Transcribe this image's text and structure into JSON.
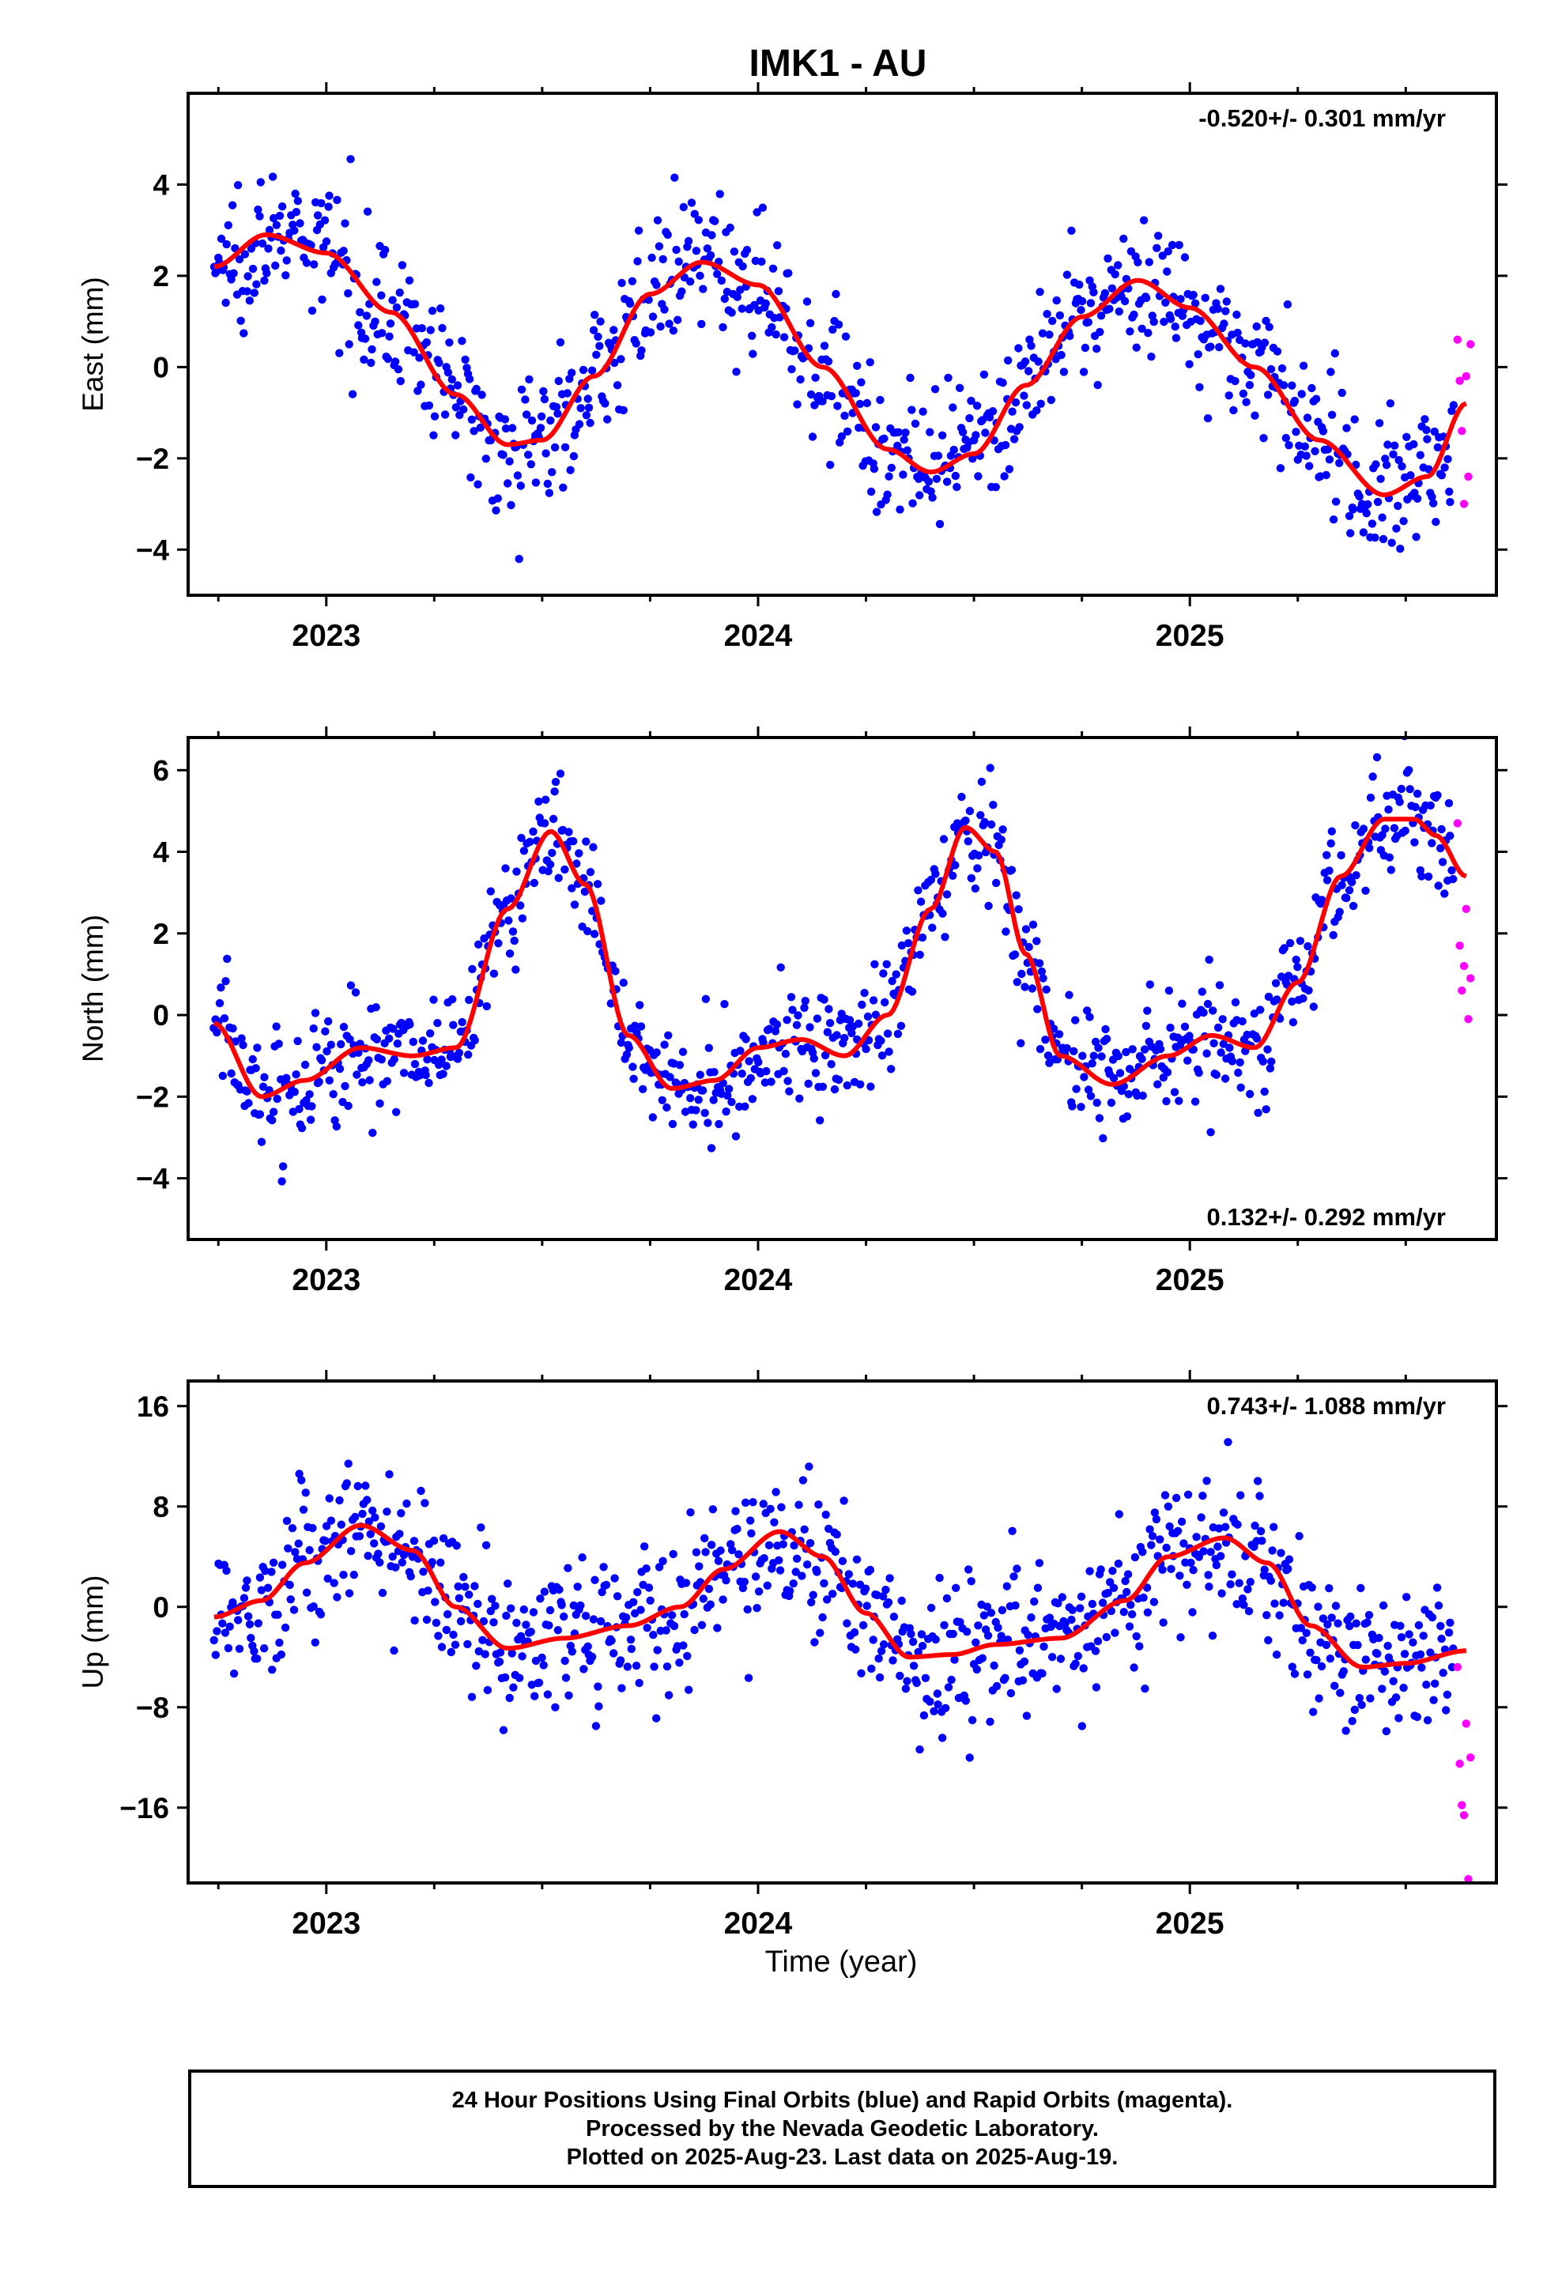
{
  "title": "IMK1 - AU",
  "xlabel": "Time (year)",
  "caption": [
    "24 Hour Positions Using Final Orbits (blue) and Rapid Orbits (magenta).",
    "Processed by the Nevada Geodetic Laboratory.",
    "Plotted on 2025-Aug-23. Last data on 2025-Aug-19."
  ],
  "colors": {
    "final": "#0000ff",
    "rapid": "#ff00ff",
    "model": "#ff0000",
    "axis": "#000000"
  },
  "chart_data": [
    {
      "type": "scatter",
      "name": "East",
      "ylabel": "East (mm)",
      "rate_text": "-0.520+/- 0.301 mm/yr",
      "rate_position": "top-right",
      "xlim": [
        2022.68,
        2025.71
      ],
      "ylim": [
        -5.0,
        6.0
      ],
      "xticks": [
        2023,
        2024,
        2025
      ],
      "xtick_labels": [
        "2023",
        "2024",
        "2025"
      ],
      "yticks": [
        -4,
        -2,
        0,
        2,
        4
      ],
      "ytick_labels": [
        "−4",
        "−2",
        "0",
        "2",
        "4"
      ],
      "model": {
        "x": [
          2022.74,
          2022.86,
          2023.0,
          2023.15,
          2023.3,
          2023.42,
          2023.5,
          2023.62,
          2023.75,
          2023.87,
          2024.0,
          2024.15,
          2024.3,
          2024.4,
          2024.5,
          2024.62,
          2024.75,
          2024.88,
          2025.0,
          2025.15,
          2025.3,
          2025.45,
          2025.55,
          2025.64
        ],
        "y": [
          2.2,
          2.9,
          2.5,
          1.2,
          -0.6,
          -1.7,
          -1.6,
          -0.2,
          1.6,
          2.3,
          1.8,
          0.0,
          -1.8,
          -2.3,
          -1.9,
          -0.4,
          1.1,
          1.9,
          1.3,
          0.0,
          -1.6,
          -2.8,
          -2.4,
          -0.8
        ]
      },
      "noise_sd": 0.75,
      "final_count": 870,
      "rapid_points": {
        "x": [
          2025.62,
          2025.625,
          2025.63,
          2025.635,
          2025.64,
          2025.645,
          2025.65
        ],
        "y": [
          0.6,
          -0.3,
          -1.4,
          -3.0,
          -0.2,
          -2.4,
          0.5
        ]
      }
    },
    {
      "type": "scatter",
      "name": "North",
      "ylabel": "North (mm)",
      "rate_text": "0.132+/- 0.292 mm/yr",
      "rate_position": "bottom-right",
      "xlim": [
        2022.68,
        2025.71
      ],
      "ylim": [
        -5.5,
        6.8
      ],
      "xticks": [
        2023,
        2024,
        2025
      ],
      "xtick_labels": [
        "2023",
        "2024",
        "2025"
      ],
      "yticks": [
        -4,
        -2,
        0,
        2,
        4,
        6
      ],
      "ytick_labels": [
        "−4",
        "−2",
        "0",
        "2",
        "4",
        "6"
      ],
      "model": {
        "x": [
          2022.74,
          2022.85,
          2022.95,
          2023.08,
          2023.2,
          2023.3,
          2023.42,
          2023.52,
          2023.6,
          2023.7,
          2023.8,
          2023.9,
          2024.0,
          2024.1,
          2024.2,
          2024.3,
          2024.4,
          2024.48,
          2024.55,
          2024.62,
          2024.7,
          2024.82,
          2024.95,
          2025.05,
          2025.15,
          2025.25,
          2025.35,
          2025.45,
          2025.52,
          2025.57,
          2025.64
        ],
        "y": [
          -0.2,
          -2.0,
          -1.6,
          -0.8,
          -1.0,
          -0.8,
          2.6,
          4.5,
          3.2,
          -0.5,
          -1.8,
          -1.6,
          -0.8,
          -0.6,
          -1.0,
          0.0,
          2.6,
          4.6,
          4.0,
          1.5,
          -1.0,
          -1.7,
          -1.0,
          -0.5,
          -0.8,
          0.8,
          3.4,
          4.8,
          4.8,
          4.4,
          3.4
        ]
      },
      "noise_sd": 0.75,
      "final_count": 860,
      "rapid_points": {
        "x": [
          2025.62,
          2025.625,
          2025.63,
          2025.635,
          2025.64,
          2025.645,
          2025.65
        ],
        "y": [
          4.7,
          1.7,
          0.6,
          1.2,
          2.6,
          -0.1,
          0.9
        ]
      }
    },
    {
      "type": "scatter",
      "name": "Up",
      "ylabel": "Up (mm)",
      "rate_text": "0.743+/- 1.088 mm/yr",
      "rate_position": "top-right",
      "xlim": [
        2022.68,
        2025.71
      ],
      "ylim": [
        -22,
        18
      ],
      "xticks": [
        2023,
        2024,
        2025
      ],
      "xtick_labels": [
        "2023",
        "2024",
        "2025"
      ],
      "yticks": [
        -16,
        -8,
        0,
        8,
        16
      ],
      "ytick_labels": [
        "−16",
        "−8",
        "0",
        "8",
        "16"
      ],
      "model": {
        "x": [
          2022.74,
          2022.85,
          2022.95,
          2023.08,
          2023.2,
          2023.3,
          2023.42,
          2023.55,
          2023.7,
          2023.82,
          2023.92,
          2024.05,
          2024.15,
          2024.25,
          2024.35,
          2024.45,
          2024.55,
          2024.7,
          2024.85,
          2024.95,
          2025.08,
          2025.18,
          2025.28,
          2025.4,
          2025.5,
          2025.64
        ],
        "y": [
          -0.8,
          0.5,
          3.5,
          6.5,
          4.5,
          0.0,
          -3.3,
          -2.5,
          -1.5,
          0.0,
          3.0,
          6.0,
          4.0,
          -0.5,
          -4.0,
          -3.8,
          -3.0,
          -2.5,
          0.5,
          4.0,
          5.5,
          3.5,
          -1.5,
          -4.8,
          -4.5,
          -3.5
        ]
      },
      "noise_sd": 3.0,
      "final_count": 870,
      "rapid_points": {
        "x": [
          2025.62,
          2025.625,
          2025.63,
          2025.635,
          2025.64,
          2025.645,
          2025.65
        ],
        "y": [
          -4.8,
          -12.5,
          -15.8,
          -16.6,
          -9.3,
          -21.7,
          -12.0
        ]
      }
    }
  ]
}
